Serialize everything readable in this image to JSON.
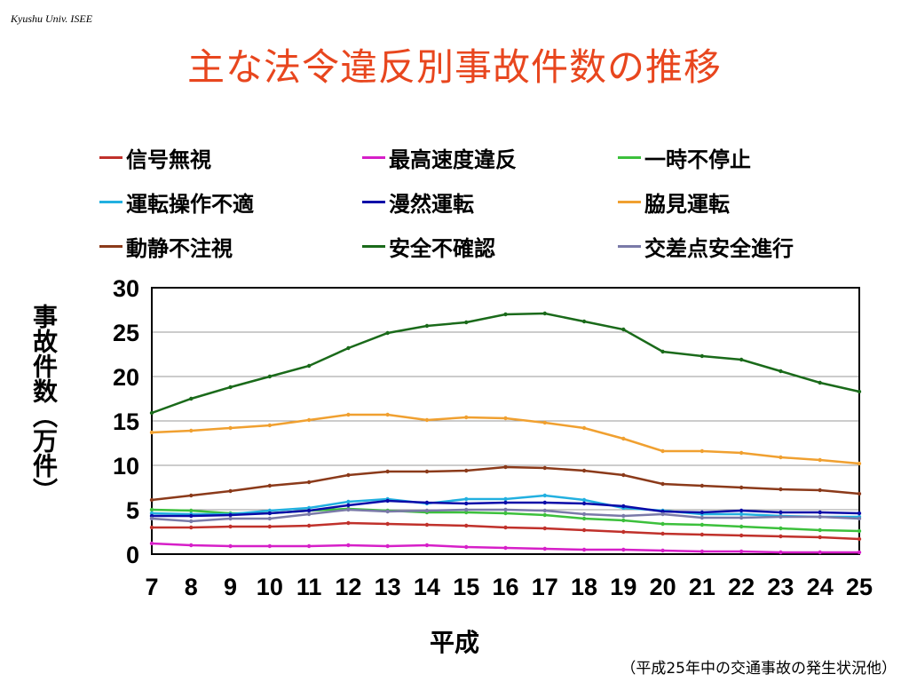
{
  "header_note": "Kyushu Univ. ISEE",
  "title": "主な法令違反別事故件数の推移",
  "source_note": "（平成25年中の交通事故の発生状況他）",
  "chart_data": {
    "type": "line",
    "x": [
      "7",
      "8",
      "9",
      "10",
      "11",
      "12",
      "13",
      "14",
      "15",
      "16",
      "17",
      "18",
      "19",
      "20",
      "21",
      "22",
      "23",
      "24",
      "25"
    ],
    "xlabel": "平成",
    "ylabel": "事故件数（万件）",
    "ylim": [
      0,
      30
    ],
    "yticks": [
      "0",
      "5",
      "10",
      "15",
      "20",
      "25",
      "30"
    ],
    "grid": true,
    "legend_position": "top",
    "series": [
      {
        "name": "信号無視",
        "color": "#c0312b",
        "values": [
          3.0,
          3.0,
          3.1,
          3.1,
          3.2,
          3.5,
          3.4,
          3.3,
          3.2,
          3.0,
          2.9,
          2.7,
          2.5,
          2.3,
          2.2,
          2.1,
          2.0,
          1.9,
          1.7
        ]
      },
      {
        "name": "最高速度違反",
        "color": "#d61fc8",
        "values": [
          1.2,
          1.0,
          0.9,
          0.9,
          0.9,
          1.0,
          0.9,
          1.0,
          0.8,
          0.7,
          0.6,
          0.5,
          0.5,
          0.4,
          0.3,
          0.3,
          0.2,
          0.2,
          0.2
        ]
      },
      {
        "name": "一時不停止",
        "color": "#3cc03c",
        "values": [
          5.0,
          4.9,
          4.6,
          4.6,
          4.9,
          5.1,
          4.9,
          4.7,
          4.7,
          4.6,
          4.4,
          4.0,
          3.8,
          3.4,
          3.3,
          3.1,
          2.9,
          2.7,
          2.6
        ]
      },
      {
        "name": "運転操作不適",
        "color": "#22b0e0",
        "values": [
          4.6,
          4.5,
          4.5,
          4.9,
          5.2,
          5.9,
          6.2,
          5.7,
          6.2,
          6.2,
          6.6,
          6.1,
          5.2,
          4.9,
          4.5,
          4.5,
          4.3,
          4.2,
          4.2
        ]
      },
      {
        "name": "漫然運転",
        "color": "#0a0aa8",
        "values": [
          4.3,
          4.3,
          4.4,
          4.6,
          4.9,
          5.5,
          6.0,
          5.8,
          5.7,
          5.8,
          5.8,
          5.7,
          5.4,
          4.8,
          4.7,
          4.9,
          4.7,
          4.7,
          4.6
        ]
      },
      {
        "name": "脇見運転",
        "color": "#f0a030",
        "values": [
          13.7,
          13.9,
          14.2,
          14.5,
          15.1,
          15.7,
          15.7,
          15.1,
          15.4,
          15.3,
          14.8,
          14.2,
          13.0,
          11.6,
          11.6,
          11.4,
          10.9,
          10.6,
          10.2
        ]
      },
      {
        "name": "動静不注視",
        "color": "#8b3a1a",
        "values": [
          6.1,
          6.6,
          7.1,
          7.7,
          8.1,
          8.9,
          9.3,
          9.3,
          9.4,
          9.8,
          9.7,
          9.4,
          8.9,
          7.9,
          7.7,
          7.5,
          7.3,
          7.2,
          6.8
        ]
      },
      {
        "name": "安全不確認",
        "color": "#1a6a1a",
        "values": [
          15.9,
          17.5,
          18.8,
          20.0,
          21.2,
          23.2,
          24.9,
          25.7,
          26.1,
          27.0,
          27.1,
          26.2,
          25.3,
          22.8,
          22.3,
          21.9,
          20.6,
          19.3,
          18.3
        ]
      },
      {
        "name": "交差点安全進行",
        "color": "#7a7aa8",
        "values": [
          4.0,
          3.7,
          4.0,
          4.0,
          4.5,
          5.0,
          4.8,
          4.9,
          5.0,
          5.0,
          4.9,
          4.5,
          4.3,
          4.5,
          4.1,
          4.1,
          4.2,
          4.2,
          4.0
        ]
      }
    ]
  }
}
